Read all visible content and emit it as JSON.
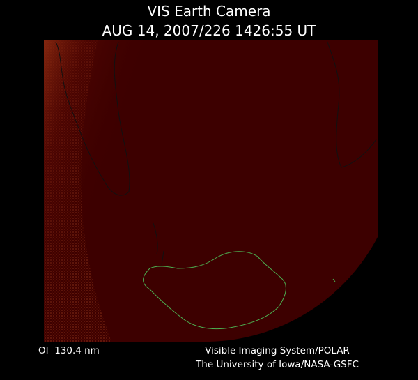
{
  "header": {
    "title": "VIS Earth Camera",
    "timestamp": "AUG 14, 2007/226 1426:55 UT"
  },
  "footer": {
    "wavelength": "OI  130.4 nm",
    "instrument": "Visible Imaging System/POLAR",
    "institution": "The University of Iowa/NASA-GSFC"
  }
}
